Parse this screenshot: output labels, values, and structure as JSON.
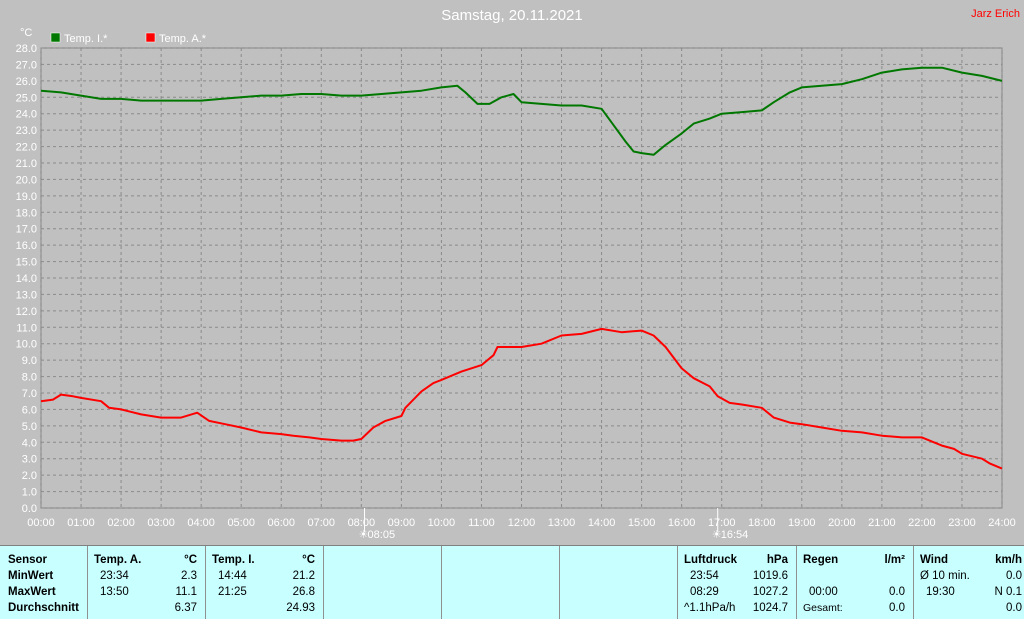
{
  "chart_data": {
    "type": "line",
    "title": "Samstag, 20.11.2021",
    "author": "Jarz Erich",
    "ylabel": "°C",
    "ylim": [
      0,
      28
    ],
    "y_ticks": [
      "0.0",
      "1.0",
      "2.0",
      "3.0",
      "4.0",
      "5.0",
      "6.0",
      "7.0",
      "8.0",
      "9.0",
      "10.0",
      "11.0",
      "12.0",
      "13.0",
      "14.0",
      "15.0",
      "16.0",
      "17.0",
      "18.0",
      "19.0",
      "20.0",
      "21.0",
      "22.0",
      "23.0",
      "24.0",
      "25.0",
      "26.0",
      "27.0",
      "28.0"
    ],
    "x_ticks": [
      "00:00",
      "01:00",
      "02:00",
      "03:00",
      "04:00",
      "05:00",
      "06:00",
      "07:00",
      "08:00",
      "09:00",
      "10:00",
      "11:00",
      "12:00",
      "13:00",
      "14:00",
      "15:00",
      "16:00",
      "17:00",
      "18:00",
      "19:00",
      "20:00",
      "21:00",
      "22:00",
      "23:00",
      "24:00"
    ],
    "grid": true,
    "legend_position": "top-left",
    "sunrise": {
      "hour": 8.08,
      "label": "08:05"
    },
    "sunset": {
      "hour": 16.9,
      "label": "16:54"
    },
    "series": [
      {
        "name": "Temp. I.*",
        "color": "#007800",
        "points": [
          [
            0,
            25.4
          ],
          [
            0.5,
            25.3
          ],
          [
            1,
            25.1
          ],
          [
            1.5,
            24.9
          ],
          [
            2,
            24.9
          ],
          [
            2.5,
            24.8
          ],
          [
            3,
            24.8
          ],
          [
            3.5,
            24.8
          ],
          [
            4,
            24.8
          ],
          [
            4.5,
            24.9
          ],
          [
            5,
            25.0
          ],
          [
            5.5,
            25.1
          ],
          [
            6,
            25.1
          ],
          [
            6.5,
            25.2
          ],
          [
            7,
            25.2
          ],
          [
            7.5,
            25.1
          ],
          [
            8,
            25.1
          ],
          [
            8.5,
            25.2
          ],
          [
            9,
            25.3
          ],
          [
            9.5,
            25.4
          ],
          [
            10,
            25.6
          ],
          [
            10.4,
            25.7
          ],
          [
            10.6,
            25.3
          ],
          [
            10.9,
            24.6
          ],
          [
            11.2,
            24.6
          ],
          [
            11.5,
            25.0
          ],
          [
            11.8,
            25.2
          ],
          [
            12,
            24.7
          ],
          [
            12.5,
            24.6
          ],
          [
            13,
            24.5
          ],
          [
            13.5,
            24.5
          ],
          [
            14,
            24.3
          ],
          [
            14.3,
            23.3
          ],
          [
            14.6,
            22.3
          ],
          [
            14.8,
            21.7
          ],
          [
            15,
            21.6
          ],
          [
            15.3,
            21.5
          ],
          [
            15.6,
            22.1
          ],
          [
            16,
            22.8
          ],
          [
            16.3,
            23.4
          ],
          [
            16.7,
            23.7
          ],
          [
            17,
            24.0
          ],
          [
            17.5,
            24.1
          ],
          [
            18,
            24.2
          ],
          [
            18.3,
            24.7
          ],
          [
            18.7,
            25.3
          ],
          [
            19,
            25.6
          ],
          [
            19.5,
            25.7
          ],
          [
            20,
            25.8
          ],
          [
            20.5,
            26.1
          ],
          [
            21,
            26.5
          ],
          [
            21.5,
            26.7
          ],
          [
            22,
            26.8
          ],
          [
            22.5,
            26.8
          ],
          [
            23,
            26.5
          ],
          [
            23.5,
            26.3
          ],
          [
            24,
            26.0
          ]
        ]
      },
      {
        "name": "Temp. A.*",
        "color": "#ff0000",
        "points": [
          [
            0,
            6.5
          ],
          [
            0.3,
            6.6
          ],
          [
            0.5,
            6.9
          ],
          [
            0.8,
            6.8
          ],
          [
            1,
            6.7
          ],
          [
            1.5,
            6.5
          ],
          [
            1.7,
            6.1
          ],
          [
            2,
            6.0
          ],
          [
            2.5,
            5.7
          ],
          [
            3,
            5.5
          ],
          [
            3.5,
            5.5
          ],
          [
            3.9,
            5.8
          ],
          [
            4.2,
            5.3
          ],
          [
            4.6,
            5.1
          ],
          [
            5,
            4.9
          ],
          [
            5.5,
            4.6
          ],
          [
            6,
            4.5
          ],
          [
            6.3,
            4.4
          ],
          [
            6.7,
            4.3
          ],
          [
            7,
            4.2
          ],
          [
            7.5,
            4.1
          ],
          [
            7.8,
            4.1
          ],
          [
            8,
            4.2
          ],
          [
            8.3,
            4.9
          ],
          [
            8.6,
            5.3
          ],
          [
            9,
            5.6
          ],
          [
            9.1,
            6.1
          ],
          [
            9.5,
            7.1
          ],
          [
            9.8,
            7.6
          ],
          [
            10,
            7.8
          ],
          [
            10.5,
            8.3
          ],
          [
            11,
            8.7
          ],
          [
            11.3,
            9.3
          ],
          [
            11.4,
            9.8
          ],
          [
            11.8,
            9.8
          ],
          [
            12,
            9.8
          ],
          [
            12.5,
            10.0
          ],
          [
            13,
            10.5
          ],
          [
            13.5,
            10.6
          ],
          [
            14,
            10.9
          ],
          [
            14.5,
            10.7
          ],
          [
            15,
            10.8
          ],
          [
            15.3,
            10.5
          ],
          [
            15.6,
            9.8
          ],
          [
            16,
            8.5
          ],
          [
            16.3,
            7.9
          ],
          [
            16.7,
            7.4
          ],
          [
            16.9,
            6.8
          ],
          [
            17.2,
            6.4
          ],
          [
            17.5,
            6.3
          ],
          [
            18,
            6.1
          ],
          [
            18.3,
            5.5
          ],
          [
            18.7,
            5.2
          ],
          [
            19,
            5.1
          ],
          [
            19.5,
            4.9
          ],
          [
            20,
            4.7
          ],
          [
            20.5,
            4.6
          ],
          [
            21,
            4.4
          ],
          [
            21.5,
            4.3
          ],
          [
            22,
            4.3
          ],
          [
            22.5,
            3.8
          ],
          [
            22.8,
            3.6
          ],
          [
            23,
            3.3
          ],
          [
            23.5,
            3.0
          ],
          [
            23.7,
            2.7
          ],
          [
            24,
            2.4
          ]
        ]
      }
    ]
  },
  "stats": {
    "sensor": {
      "header": "Sensor",
      "rows": [
        "MinWert",
        "MaxWert",
        "Durchschnitt"
      ]
    },
    "temp_a": {
      "header": "Temp. A.",
      "unit": "°C",
      "min_time": "23:34",
      "min": "2.3",
      "max_time": "13:50",
      "max": "11.1",
      "avg": "6.37"
    },
    "temp_i": {
      "header": "Temp. I.",
      "unit": "°C",
      "min_time": "14:44",
      "min": "21.2",
      "max_time": "21:25",
      "max": "26.8",
      "avg": "24.93"
    },
    "luftdruck": {
      "header": "Luftdruck",
      "unit": "hPa",
      "min_time": "23:54",
      "min": "1019.6",
      "max_time": "08:29",
      "max": "1027.2",
      "trend": "^1.1hPa/h",
      "current": "1024.7"
    },
    "regen": {
      "header": "Regen",
      "unit": "l/m²",
      "row1": "0.0",
      "time": "00:00",
      "row2": "0.0",
      "gesamt_label": "Gesamt:",
      "gesamt": "0.0"
    },
    "wind": {
      "header": "Wind",
      "unit": "km/h",
      "avg_label": "Ø 10 min.",
      "avg": "0.0",
      "time": "19:30",
      "dir": "N 0.1",
      "row3": "0.0"
    }
  }
}
